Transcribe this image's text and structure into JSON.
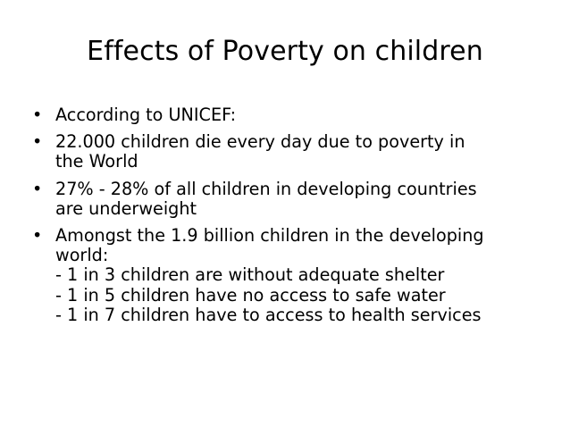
{
  "slide": {
    "title": "Effects of Poverty on children",
    "bullets": [
      {
        "lines": [
          "According to UNICEF:"
        ]
      },
      {
        "lines": [
          "22.000 children die every day due to poverty in",
          "the World"
        ]
      },
      {
        "lines": [
          "27% - 28% of all children in developing countries",
          "are underweight"
        ]
      },
      {
        "lines": [
          "Amongst the 1.9 billion children in the developing",
          "world:",
          "- 1 in 3 children are without adequate shelter",
          "- 1 in 5 children have no access to safe water",
          "- 1 in 7 children have to access to health services"
        ]
      }
    ]
  }
}
